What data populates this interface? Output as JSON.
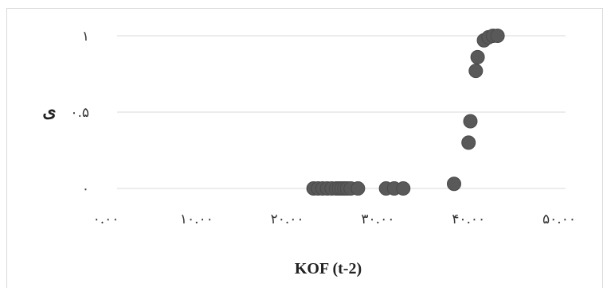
{
  "chart_data": {
    "type": "scatter",
    "xlabel": "KOF (t-2)",
    "ylabel": "ی",
    "xlim": [
      0,
      50
    ],
    "ylim": [
      0,
      1
    ],
    "x_ticks": [
      0,
      10,
      20,
      30,
      40,
      50
    ],
    "x_tick_labels": [
      "۰.۰۰",
      "۱۰.۰۰",
      "۲۰.۰۰",
      "۳۰.۰۰",
      "۴۰.۰۰",
      "۵۰.۰۰"
    ],
    "y_ticks": [
      0,
      0.5,
      1
    ],
    "y_tick_labels": [
      "۰",
      "۰.۵",
      "۱"
    ],
    "grid": true,
    "marker_color": "#595959",
    "gridline_color": "#d9d9d9",
    "points": [
      {
        "x": 22.9,
        "y": 0
      },
      {
        "x": 23.4,
        "y": 0
      },
      {
        "x": 23.9,
        "y": 0
      },
      {
        "x": 24.4,
        "y": 0
      },
      {
        "x": 24.9,
        "y": 0
      },
      {
        "x": 25.4,
        "y": 0
      },
      {
        "x": 25.7,
        "y": 0
      },
      {
        "x": 26.0,
        "y": 0
      },
      {
        "x": 26.3,
        "y": 0
      },
      {
        "x": 26.6,
        "y": 0
      },
      {
        "x": 27.0,
        "y": 0
      },
      {
        "x": 27.8,
        "y": 0
      },
      {
        "x": 30.9,
        "y": 0
      },
      {
        "x": 31.8,
        "y": 0
      },
      {
        "x": 32.8,
        "y": 0
      },
      {
        "x": 38.4,
        "y": 0.03
      },
      {
        "x": 40.0,
        "y": 0.3
      },
      {
        "x": 40.2,
        "y": 0.44
      },
      {
        "x": 40.8,
        "y": 0.77
      },
      {
        "x": 41.0,
        "y": 0.86
      },
      {
        "x": 41.7,
        "y": 0.97
      },
      {
        "x": 42.2,
        "y": 0.99
      },
      {
        "x": 42.7,
        "y": 1.0
      },
      {
        "x": 43.2,
        "y": 1.0
      }
    ]
  }
}
